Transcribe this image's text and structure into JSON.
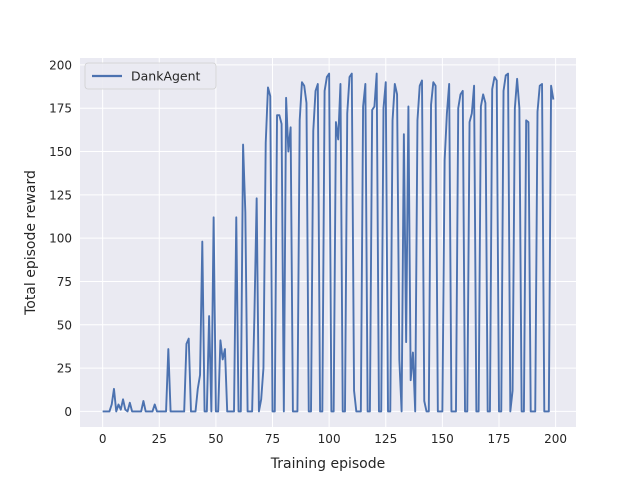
{
  "chart_data": {
    "type": "line",
    "title": "",
    "xlabel": "Training episode",
    "ylabel": "Total episode reward",
    "xlim": [
      -10,
      209
    ],
    "ylim": [
      -9,
      204
    ],
    "xticks": [
      0,
      25,
      50,
      75,
      100,
      125,
      150,
      175,
      200
    ],
    "yticks": [
      0,
      25,
      50,
      75,
      100,
      125,
      150,
      175,
      200
    ],
    "grid": true,
    "legend_position": "top-left",
    "series": [
      {
        "name": "DankAgent",
        "color": "#4c72b0",
        "x": [
          0,
          1,
          2,
          3,
          4,
          5,
          6,
          7,
          8,
          9,
          10,
          11,
          12,
          13,
          14,
          15,
          16,
          17,
          18,
          19,
          20,
          21,
          22,
          23,
          24,
          25,
          26,
          27,
          28,
          29,
          30,
          31,
          32,
          33,
          34,
          35,
          36,
          37,
          38,
          39,
          40,
          41,
          42,
          43,
          44,
          45,
          46,
          47,
          48,
          49,
          50,
          51,
          52,
          53,
          54,
          55,
          56,
          57,
          58,
          59,
          60,
          61,
          62,
          63,
          64,
          65,
          66,
          67,
          68,
          69,
          70,
          71,
          72,
          73,
          74,
          75,
          76,
          77,
          78,
          79,
          80,
          81,
          82,
          83,
          84,
          85,
          86,
          87,
          88,
          89,
          90,
          91,
          92,
          93,
          94,
          95,
          96,
          97,
          98,
          99,
          100,
          101,
          102,
          103,
          104,
          105,
          106,
          107,
          108,
          109,
          110,
          111,
          112,
          113,
          114,
          115,
          116,
          117,
          118,
          119,
          120,
          121,
          122,
          123,
          124,
          125,
          126,
          127,
          128,
          129,
          130,
          131,
          132,
          133,
          134,
          135,
          136,
          137,
          138,
          139,
          140,
          141,
          142,
          143,
          144,
          145,
          146,
          147,
          148,
          149,
          150,
          151,
          152,
          153,
          154,
          155,
          156,
          157,
          158,
          159,
          160,
          161,
          162,
          163,
          164,
          165,
          166,
          167,
          168,
          169,
          170,
          171,
          172,
          173,
          174,
          175,
          176,
          177,
          178,
          179,
          180,
          181,
          182,
          183,
          184,
          185,
          186,
          187,
          188,
          189,
          190,
          191,
          192,
          193,
          194,
          195,
          196,
          197,
          198,
          199
        ],
        "values": [
          0,
          0,
          0,
          0,
          4,
          13,
          0,
          4,
          1,
          7,
          1,
          0,
          5,
          0,
          0,
          0,
          0,
          0,
          6,
          0,
          0,
          0,
          0,
          4,
          0,
          0,
          0,
          0,
          0,
          36,
          0,
          0,
          0,
          0,
          0,
          0,
          0,
          39,
          42,
          0,
          0,
          0,
          13,
          21,
          98,
          0,
          0,
          55,
          0,
          112,
          0,
          0,
          41,
          30,
          36,
          0,
          0,
          0,
          0,
          112,
          0,
          0,
          154,
          115,
          0,
          0,
          0,
          55,
          123,
          0,
          7,
          25,
          155,
          187,
          182,
          0,
          0,
          171,
          171,
          166,
          0,
          181,
          150,
          164,
          0,
          0,
          0,
          168,
          190,
          188,
          178,
          0,
          0,
          162,
          185,
          189,
          0,
          0,
          185,
          193,
          195,
          0,
          0,
          167,
          157,
          189,
          0,
          0,
          172,
          193,
          195,
          12,
          0,
          0,
          0,
          176,
          189,
          0,
          0,
          174,
          176,
          195,
          0,
          0,
          175,
          190,
          0,
          0,
          168,
          189,
          183,
          30,
          0,
          160,
          40,
          176,
          18,
          34,
          0,
          168,
          188,
          191,
          6,
          0,
          0,
          177,
          190,
          188,
          0,
          0,
          0,
          145,
          172,
          189,
          0,
          0,
          0,
          175,
          183,
          185,
          0,
          0,
          167,
          172,
          188,
          0,
          0,
          176,
          183,
          178,
          0,
          0,
          186,
          193,
          191,
          0,
          0,
          185,
          194,
          195,
          0,
          12,
          175,
          192,
          175,
          0,
          0,
          168,
          167,
          0,
          0,
          0,
          173,
          188,
          189,
          0,
          0,
          0,
          188,
          180
        ]
      }
    ]
  }
}
